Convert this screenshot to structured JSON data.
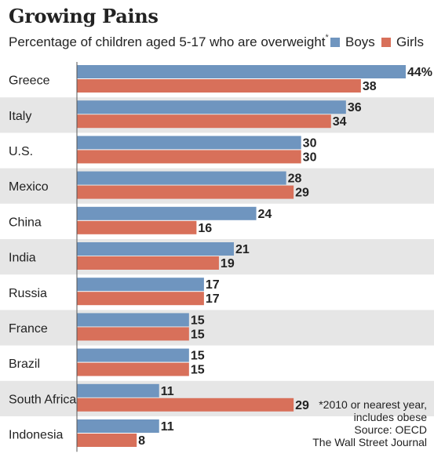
{
  "header": {
    "title": "Growing Pains",
    "subtitle": "Percentage of children aged 5-17 who are overweight",
    "subtitle_mark": "*"
  },
  "legend": {
    "boys": "Boys",
    "girls": "Girls"
  },
  "colors": {
    "boys": "#6f95bf",
    "girls": "#d8705a",
    "band": "#e6e6e6"
  },
  "footnote": {
    "line1": "*2010 or nearest year,",
    "line2": "includes obese",
    "line3": "Source: OECD",
    "line4": "The Wall Street Journal"
  },
  "chart_data": {
    "type": "bar",
    "orientation": "horizontal",
    "categories": [
      "Greece",
      "Italy",
      "U.S.",
      "Mexico",
      "China",
      "India",
      "Russia",
      "France",
      "Brazil",
      "South Africa",
      "Indonesia"
    ],
    "series": [
      {
        "name": "Boys",
        "values": [
          44,
          36,
          30,
          28,
          24,
          21,
          17,
          15,
          15,
          11,
          11
        ]
      },
      {
        "name": "Girls",
        "values": [
          38,
          34,
          30,
          29,
          16,
          19,
          17,
          15,
          15,
          29,
          8
        ]
      }
    ],
    "first_label_suffix": "%",
    "xlim": [
      0,
      44
    ]
  }
}
